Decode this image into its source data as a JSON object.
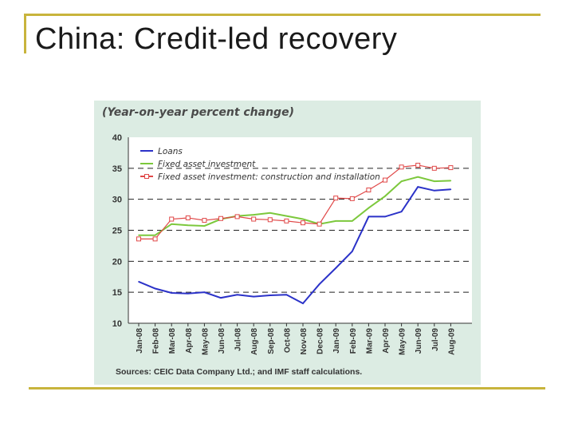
{
  "slide": {
    "title": "China: Credit-led recovery"
  },
  "colors": {
    "frame": "#c8b43c",
    "panel_background": "#dcece3",
    "plot_background": "#ffffff",
    "loans": "#2b32c8",
    "fixed_asset_investment": "#7cc83c",
    "construction": "#e04848",
    "gridline": "#222222"
  },
  "chart_data": {
    "type": "line",
    "title": "(Year-on-year percent change)",
    "xlabel": "",
    "ylabel": "",
    "ylim": [
      10,
      40
    ],
    "yticks": [
      10,
      15,
      20,
      25,
      30,
      35,
      40
    ],
    "grid": "dashed horizontal",
    "legend_position": "top-left",
    "categories": [
      "Jan-08",
      "Feb-08",
      "Mar-08",
      "Apr-08",
      "May-08",
      "Jun-08",
      "Jul-08",
      "Aug-08",
      "Sep-08",
      "Oct-08",
      "Nov-08",
      "Dec-08",
      "Jan-09",
      "Feb-09",
      "Mar-09",
      "Apr-09",
      "May-09",
      "Jun-09",
      "Jul-09",
      "Aug-09"
    ],
    "series": [
      {
        "name": "Loans",
        "marker": "none",
        "color_key": "loans",
        "values": [
          16.7,
          15.6,
          14.9,
          14.8,
          15.0,
          14.1,
          14.6,
          14.3,
          14.5,
          14.6,
          13.2,
          16.3,
          18.9,
          21.6,
          27.2,
          27.2,
          28.0,
          32.0,
          31.4,
          31.6
        ]
      },
      {
        "name": "Fixed asset investment",
        "marker": "none",
        "color_key": "fixed_asset_investment",
        "values": [
          24.2,
          24.2,
          26.0,
          25.8,
          25.7,
          26.8,
          27.3,
          27.5,
          27.8,
          27.3,
          26.8,
          26.0,
          26.5,
          26.5,
          28.6,
          30.5,
          32.9,
          33.6,
          32.9,
          33.0
        ]
      },
      {
        "name": "Fixed asset investment: construction and installation",
        "marker": "square",
        "color_key": "construction",
        "values": [
          23.6,
          23.6,
          26.8,
          27.0,
          26.6,
          26.9,
          27.2,
          26.8,
          26.7,
          26.5,
          26.2,
          26.0,
          30.2,
          30.1,
          31.5,
          33.1,
          35.2,
          35.5,
          35.0,
          35.1
        ]
      }
    ],
    "source": "Sources: CEIC Data Company Ltd.; and IMF staff calculations."
  }
}
